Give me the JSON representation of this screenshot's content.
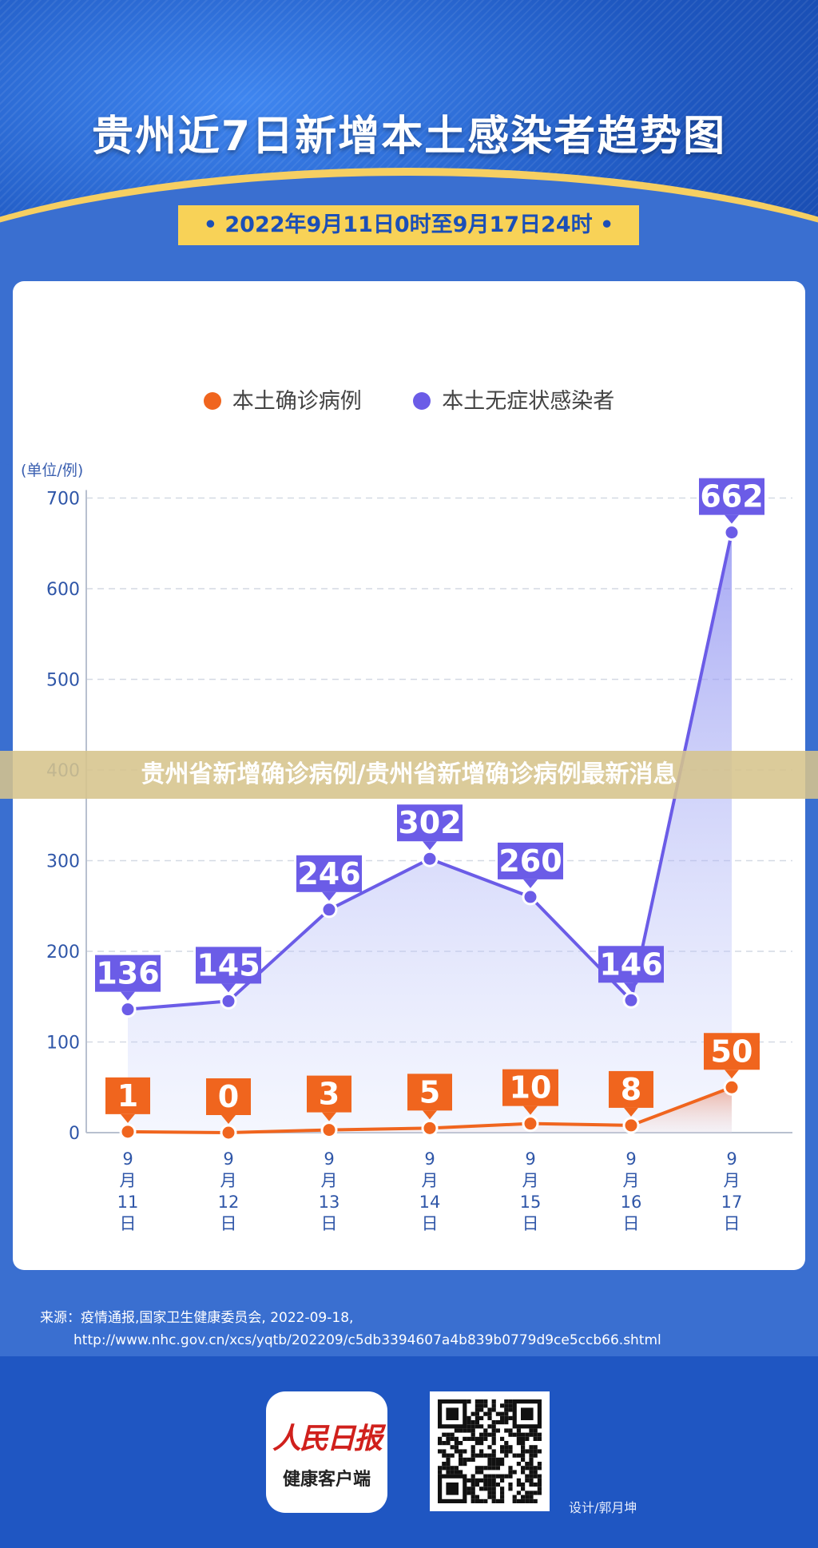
{
  "header": {
    "title": "贵州近7日新增本土感染者趋势图",
    "date_range": "•  2022年9月11日0时至9月17日24时  •"
  },
  "legend": {
    "confirmed": "本土确诊病例",
    "asymptomatic": "本土无症状感染者"
  },
  "unit_label": "(单位/例)",
  "chart_data": {
    "type": "line",
    "categories": [
      "9月11日",
      "9月12日",
      "9月13日",
      "9月14日",
      "9月15日",
      "9月16日",
      "9月17日"
    ],
    "category_lines": [
      [
        "9",
        "月",
        "11",
        "日"
      ],
      [
        "9",
        "月",
        "12",
        "日"
      ],
      [
        "9",
        "月",
        "13",
        "日"
      ],
      [
        "9",
        "月",
        "14",
        "日"
      ],
      [
        "9",
        "月",
        "15",
        "日"
      ],
      [
        "9",
        "月",
        "16",
        "日"
      ],
      [
        "9",
        "月",
        "17",
        "日"
      ]
    ],
    "series": [
      {
        "name": "本土确诊病例",
        "values": [
          1,
          0,
          3,
          5,
          10,
          8,
          50
        ],
        "color": "#f0651e"
      },
      {
        "name": "本土无症状感染者",
        "values": [
          136,
          145,
          246,
          302,
          260,
          146,
          662
        ],
        "color": "#6b5ce7"
      }
    ],
    "ylim": [
      0,
      700
    ],
    "yticks": [
      0,
      100,
      200,
      300,
      400,
      500,
      600,
      700
    ],
    "grid": true,
    "legend_position": "top-center"
  },
  "overlay_banner": "贵州省新增确诊病例/贵州省新增确诊病例最新消息",
  "source": {
    "line1": "来源：疫情通报,国家卫生健康委员会, 2022-09-18,",
    "line2": "http://www.nhc.gov.cn/xcs/yqtb/202209/c5db3394607a4b839b0779d9ce5ccb66.shtml"
  },
  "footer": {
    "logo_name": "人民日报",
    "logo_sub": "健康客户端",
    "credit": "设计/郭月坤"
  }
}
